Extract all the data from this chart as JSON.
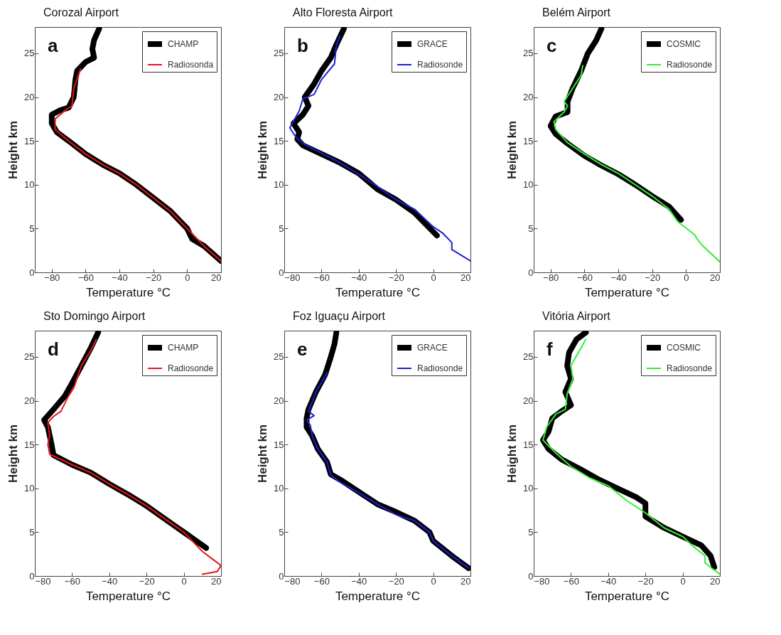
{
  "chart_data": [
    {
      "type": "line",
      "xlabel": "Temperature °C",
      "ylabel": "Height km",
      "xlim": [
        -90,
        20
      ],
      "ylim": [
        0,
        28
      ],
      "xticks": [
        -80,
        -60,
        -40,
        -20,
        0,
        20
      ],
      "yticks": [
        0,
        5,
        10,
        15,
        20,
        25
      ],
      "legend": "top right",
      "grid": false,
      "line_style": "solid",
      "annotations": [
        "a",
        "Corozal Airport"
      ],
      "series": [
        {
          "name": "CHAMP",
          "color": "#000000",
          "x": [
            20,
            10,
            3,
            0,
            -10,
            -20,
            -30,
            -40,
            -50,
            -60,
            -70,
            -77,
            -80,
            -80,
            -75,
            -70,
            -67,
            -66,
            -65,
            -60,
            -55,
            -56,
            -55,
            -52
          ],
          "values": [
            1.3,
            3,
            3.8,
            5,
            7,
            8.5,
            10,
            11.3,
            12.3,
            13.5,
            15,
            16,
            17,
            18,
            18.5,
            18.8,
            20,
            22,
            23,
            24,
            24.5,
            25.5,
            26.5,
            27.8
          ]
        },
        {
          "name": "Radiosonda",
          "color": "#e8141b",
          "x": [
            20,
            10,
            5,
            0,
            -10,
            -20,
            -30,
            -40,
            -50,
            -60,
            -70,
            -78,
            -78,
            -72,
            -68,
            -67,
            -63
          ],
          "values": [
            1.3,
            3,
            4,
            5,
            7,
            8.5,
            10,
            11.3,
            12.3,
            13.5,
            15,
            16.3,
            17.5,
            18.5,
            19,
            21,
            23.2
          ]
        }
      ]
    },
    {
      "type": "line",
      "xlabel": "Temperature °C",
      "ylabel": "Height km",
      "xlim": [
        -80,
        20
      ],
      "ylim": [
        0,
        28
      ],
      "xticks": [
        -80,
        -60,
        -40,
        -20,
        0,
        20
      ],
      "yticks": [
        0,
        5,
        10,
        15,
        20,
        25
      ],
      "legend": "top right",
      "grid": false,
      "line_style": "solid",
      "annotations": [
        "b",
        "Alto Floresta Airport"
      ],
      "series": [
        {
          "name": "GRACE",
          "color": "#000000",
          "x": [
            2,
            -10,
            -20,
            -30,
            -40,
            -50,
            -60,
            -70,
            -73,
            -72,
            -75,
            -70,
            -67,
            -69,
            -64,
            -60,
            -55,
            -52,
            -48
          ],
          "values": [
            4.2,
            6.8,
            8.3,
            9.5,
            11.3,
            12.5,
            13.5,
            14.5,
            15.2,
            16,
            17,
            18,
            19,
            20,
            21.5,
            23,
            24.5,
            26,
            27.8
          ]
        },
        {
          "name": "Radiosonde",
          "color": "#1f1fd8",
          "x": [
            20,
            10,
            10,
            5,
            0,
            -10,
            -20,
            -30,
            -40,
            -50,
            -60,
            -70,
            -74,
            -77,
            -72,
            -70,
            -64,
            -60,
            -53,
            -52,
            -50
          ],
          "values": [
            1.3,
            2.6,
            3.4,
            4.5,
            5.2,
            7.2,
            8.3,
            9.8,
            11.2,
            12.5,
            13.6,
            14.7,
            15.5,
            16.5,
            18.4,
            19.8,
            20.3,
            22,
            23.8,
            26,
            27
          ]
        }
      ]
    },
    {
      "type": "line",
      "xlabel": "Temperature °C",
      "ylabel": "Height km",
      "xlim": [
        -90,
        20
      ],
      "ylim": [
        0,
        28
      ],
      "xticks": [
        -80,
        -60,
        -40,
        -20,
        0,
        20
      ],
      "yticks": [
        0,
        5,
        10,
        15,
        20,
        25
      ],
      "legend": "top right",
      "grid": false,
      "line_style": "solid",
      "annotations": [
        "c",
        "Belém Airport"
      ],
      "series": [
        {
          "name": "COSMIC",
          "color": "#000000",
          "x": [
            -3,
            -10,
            -20,
            -30,
            -40,
            -50,
            -60,
            -70,
            -77,
            -80,
            -77,
            -70,
            -70,
            -67,
            -62,
            -58,
            -53,
            -50
          ],
          "values": [
            6,
            7.5,
            8.7,
            10,
            11.2,
            12.2,
            13.3,
            14.7,
            15.8,
            16.7,
            17.8,
            18.3,
            19.5,
            21,
            23,
            25,
            26.5,
            27.8
          ]
        },
        {
          "name": "Radiosonde",
          "color": "#33ee33",
          "x": [
            20,
            10,
            7,
            5,
            -5,
            -10,
            -20,
            -30,
            -40,
            -50,
            -60,
            -70,
            -77,
            -78,
            -72,
            -70,
            -72,
            -67,
            -62,
            -61
          ],
          "values": [
            1.2,
            3,
            3.7,
            4.3,
            5.8,
            7.2,
            8.7,
            10,
            11.3,
            12.3,
            13.5,
            14.8,
            16.3,
            17.2,
            18.3,
            19,
            19.5,
            21,
            22.5,
            23.6
          ]
        }
      ]
    },
    {
      "type": "line",
      "xlabel": "Temperature °C",
      "ylabel": "Height km",
      "xlim": [
        -80,
        20
      ],
      "ylim": [
        0,
        28
      ],
      "xticks": [
        -80,
        -60,
        -40,
        -20,
        0,
        20
      ],
      "yticks": [
        0,
        5,
        10,
        15,
        20,
        25
      ],
      "legend": "top right",
      "grid": false,
      "line_style": "solid",
      "annotations": [
        "d",
        "Sto Domingo Airport"
      ],
      "series": [
        {
          "name": "CHAMP",
          "color": "#000000",
          "x": [
            12,
            0,
            -10,
            -20,
            -30,
            -40,
            -50,
            -60,
            -70,
            -71,
            -72,
            -73,
            -75,
            -70,
            -64,
            -60,
            -55,
            -50,
            -46
          ],
          "values": [
            3.2,
            5,
            6.5,
            8,
            9.3,
            10.5,
            11.8,
            12.7,
            13.8,
            15,
            16,
            17,
            17.8,
            19,
            20.5,
            22,
            24,
            26,
            27.8
          ]
        },
        {
          "name": "Radiosonde",
          "color": "#e8141b",
          "x": [
            10,
            18,
            20,
            15,
            10,
            0,
            -10,
            -20,
            -30,
            -40,
            -50,
            -60,
            -72,
            -73,
            -72,
            -73,
            -70,
            -66,
            -62,
            -59,
            -55,
            -50,
            -47
          ],
          "values": [
            0.2,
            0.5,
            1.2,
            2,
            2.8,
            5,
            6.5,
            8,
            9.3,
            10.5,
            11.8,
            12.7,
            13.9,
            15,
            16,
            17.5,
            18.2,
            18.8,
            20.5,
            21.5,
            24,
            25.7,
            27
          ]
        }
      ]
    },
    {
      "type": "line",
      "xlabel": "Temperature °C",
      "ylabel": "Height km",
      "xlim": [
        -80,
        20
      ],
      "ylim": [
        0,
        28
      ],
      "xticks": [
        -80,
        -60,
        -40,
        -20,
        0,
        20
      ],
      "yticks": [
        0,
        5,
        10,
        15,
        20,
        25
      ],
      "legend": "top right",
      "grid": false,
      "line_style": "solid",
      "annotations": [
        "e",
        "Foz Iguaçu Airport"
      ],
      "series": [
        {
          "name": "GRACE",
          "color": "#000000",
          "x": [
            19,
            10,
            0,
            -2,
            -10,
            -20,
            -30,
            -40,
            -50,
            -55,
            -57,
            -62,
            -65,
            -68,
            -68,
            -67,
            -63,
            -58,
            -55,
            -53,
            -52
          ],
          "values": [
            0.9,
            2.3,
            4,
            5,
            6.3,
            7.3,
            8.2,
            9.6,
            11,
            11.6,
            13,
            14.5,
            16,
            17,
            18,
            19,
            21,
            23,
            25,
            26.5,
            27.8
          ]
        },
        {
          "name": "Radiosonde",
          "color": "#1f1fd8",
          "x": [
            19,
            10,
            0,
            -2,
            -10,
            -20,
            -30,
            -40,
            -50,
            -55,
            -57,
            -62,
            -65,
            -66,
            -68,
            -64,
            -67,
            -63,
            -57
          ],
          "values": [
            0.9,
            2.3,
            4,
            5,
            6.3,
            7,
            8.2,
            9.5,
            10.7,
            11.5,
            13,
            14.5,
            16,
            17.2,
            17.8,
            18.3,
            18.8,
            21,
            23.2
          ]
        }
      ]
    },
    {
      "type": "line",
      "xlabel": "Temperature °C",
      "ylabel": "Height km",
      "xlim": [
        -80,
        20
      ],
      "ylim": [
        0,
        28
      ],
      "xticks": [
        -80,
        -60,
        -40,
        -20,
        0,
        20
      ],
      "yticks": [
        0,
        5,
        10,
        15,
        20,
        25
      ],
      "legend": "top right",
      "grid": false,
      "line_style": "solid",
      "annotations": [
        "f",
        "Vitória Airport"
      ],
      "series": [
        {
          "name": "COSMIC",
          "color": "#000000",
          "x": [
            17,
            15,
            10,
            0,
            -10,
            -20,
            -20,
            -25,
            -35,
            -45,
            -55,
            -65,
            -72,
            -75,
            -72,
            -70,
            -65,
            -60,
            -63,
            -60,
            -62,
            -61,
            -57,
            -52
          ],
          "values": [
            1,
            2.3,
            3.5,
            4.5,
            5.5,
            6.8,
            8.3,
            9,
            10,
            11,
            12.2,
            13.3,
            14.5,
            15.5,
            16.5,
            18,
            18.8,
            19.5,
            21,
            22.5,
            24,
            25.5,
            27,
            27.8
          ]
        },
        {
          "name": "Radiosonde",
          "color": "#33ee33",
          "x": [
            20,
            15,
            12,
            12,
            5,
            0,
            -10,
            -20,
            -30,
            -40,
            -50,
            -60,
            -68,
            -75,
            -73,
            -68,
            -63,
            -62,
            -59,
            -60,
            -56,
            -52
          ],
          "values": [
            0.2,
            1,
            1.5,
            2.3,
            3.5,
            4.5,
            5.5,
            7.2,
            8.6,
            10.3,
            11.2,
            12.5,
            14,
            15.5,
            17,
            18.5,
            19,
            20.8,
            22.5,
            24,
            25.5,
            27
          ]
        }
      ]
    }
  ]
}
